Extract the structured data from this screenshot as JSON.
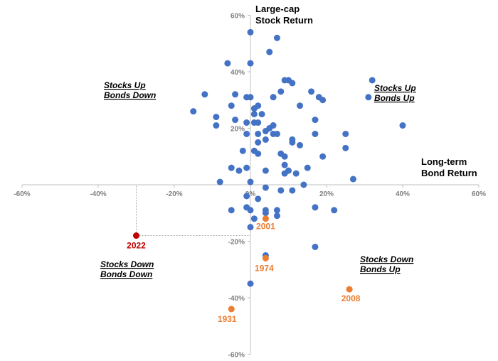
{
  "chart_data": {
    "type": "scatter",
    "title": "",
    "xlabel": "Long-term Bond Return",
    "ylabel": "Large-cap Stock Return",
    "xlim": [
      -60,
      60
    ],
    "ylim": [
      -60,
      60
    ],
    "x_ticks": [
      "-60%",
      "-40%",
      "-20%",
      "0%",
      "20%",
      "40%",
      "60%"
    ],
    "y_ticks": [
      "60%",
      "40%",
      "20%",
      "-20%",
      "-40%",
      "-60%"
    ],
    "grid": false,
    "colors": {
      "default": "#4472c4",
      "highlight": "#ed7d31",
      "current": "#c00000"
    },
    "quadrant_labels": {
      "top_left": [
        "Stocks Up",
        "Bonds Down"
      ],
      "top_right": [
        "Stocks Up",
        "Bonds Up"
      ],
      "bottom_left": [
        "Stocks Down",
        "Bonds Down"
      ],
      "bottom_right": [
        "Stocks Down",
        "Bonds Up"
      ]
    },
    "points": [
      [
        0,
        54
      ],
      [
        7,
        52
      ],
      [
        5,
        47
      ],
      [
        -6,
        43
      ],
      [
        0,
        43
      ],
      [
        9,
        37
      ],
      [
        10,
        37
      ],
      [
        11,
        36
      ],
      [
        32,
        37
      ],
      [
        -12,
        32
      ],
      [
        -4,
        32
      ],
      [
        -1,
        31
      ],
      [
        0,
        31
      ],
      [
        6,
        31
      ],
      [
        8,
        33
      ],
      [
        16,
        33
      ],
      [
        18,
        31
      ],
      [
        19,
        30
      ],
      [
        31,
        31
      ],
      [
        -5,
        28
      ],
      [
        1,
        27
      ],
      [
        2,
        28
      ],
      [
        13,
        28
      ],
      [
        -15,
        26
      ],
      [
        1,
        25
      ],
      [
        3,
        25
      ],
      [
        -9,
        24
      ],
      [
        -4,
        23
      ],
      [
        -1,
        22
      ],
      [
        1,
        22
      ],
      [
        2,
        22
      ],
      [
        6,
        21
      ],
      [
        17,
        23
      ],
      [
        40,
        21
      ],
      [
        -9,
        21
      ],
      [
        4,
        19
      ],
      [
        5,
        20
      ],
      [
        6,
        18
      ],
      [
        7,
        18
      ],
      [
        -1,
        18
      ],
      [
        2,
        18
      ],
      [
        17,
        18
      ],
      [
        25,
        18
      ],
      [
        11,
        16
      ],
      [
        2,
        15
      ],
      [
        4,
        16
      ],
      [
        11,
        15
      ],
      [
        13,
        14
      ],
      [
        25,
        13
      ],
      [
        -2,
        12
      ],
      [
        1,
        12
      ],
      [
        2,
        11
      ],
      [
        8,
        11
      ],
      [
        9,
        10
      ],
      [
        19,
        10
      ],
      [
        -5,
        6
      ],
      [
        -3,
        5
      ],
      [
        -1,
        6
      ],
      [
        4,
        5
      ],
      [
        9,
        7
      ],
      [
        10,
        5
      ],
      [
        15,
        6
      ],
      [
        9,
        4
      ],
      [
        12,
        4
      ],
      [
        27,
        2
      ],
      [
        -8,
        1
      ],
      [
        0,
        1
      ],
      [
        4,
        -1
      ],
      [
        8,
        -2
      ],
      [
        11,
        -2
      ],
      [
        14,
        0
      ],
      [
        -1,
        -4
      ],
      [
        2,
        -5
      ],
      [
        -1,
        -8
      ],
      [
        0,
        -9
      ],
      [
        -5,
        -9
      ],
      [
        4,
        -9
      ],
      [
        7,
        -9
      ],
      [
        17,
        -8
      ],
      [
        22,
        -9
      ],
      [
        4,
        -10
      ],
      [
        7,
        -11
      ],
      [
        1,
        -12
      ],
      [
        0,
        -15
      ],
      [
        4,
        -25
      ],
      [
        17,
        -22
      ],
      [
        0,
        -35
      ]
    ],
    "highlighted": [
      {
        "label": "2001",
        "x": 4,
        "y": -12
      },
      {
        "label": "1974",
        "x": 4,
        "y": -26
      },
      {
        "label": "2008",
        "x": 26,
        "y": -37
      },
      {
        "label": "1931",
        "x": -5,
        "y": -44
      }
    ],
    "current": {
      "label": "2022",
      "x": -30,
      "y": -18
    }
  }
}
